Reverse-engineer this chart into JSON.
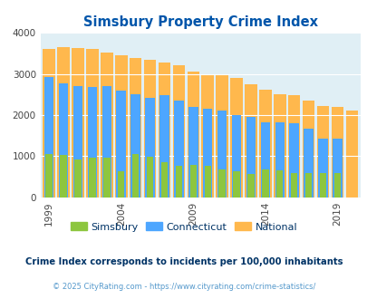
{
  "title": "Simsbury Property Crime Index",
  "years": [
    1999,
    2000,
    2001,
    2002,
    2003,
    2004,
    2005,
    2006,
    2007,
    2008,
    2009,
    2010,
    2011,
    2012,
    2013,
    2014,
    2015,
    2016,
    2017,
    2018,
    2019,
    2020
  ],
  "simsbury": [
    1060,
    1030,
    920,
    970,
    960,
    630,
    1050,
    980,
    860,
    760,
    790,
    760,
    670,
    640,
    560,
    670,
    660,
    600,
    580,
    580,
    580,
    0
  ],
  "connecticut": [
    2920,
    2780,
    2700,
    2690,
    2700,
    2600,
    2510,
    2420,
    2490,
    2360,
    2190,
    2160,
    2120,
    2010,
    1960,
    1830,
    1820,
    1800,
    1680,
    1420,
    1420,
    0
  ],
  "national": [
    3620,
    3660,
    3640,
    3600,
    3530,
    3450,
    3400,
    3340,
    3290,
    3220,
    3060,
    3000,
    2960,
    2910,
    2750,
    2610,
    2500,
    2480,
    2360,
    2230,
    2190,
    2110
  ],
  "simsbury_color": "#8dc63f",
  "connecticut_color": "#4da6ff",
  "national_color": "#ffb84d",
  "background_color": "#e0eff5",
  "ylim": [
    0,
    4000
  ],
  "xticks": [
    1999,
    2004,
    2009,
    2014,
    2019
  ],
  "yticks": [
    0,
    1000,
    2000,
    3000,
    4000
  ],
  "note": "Crime Index corresponds to incidents per 100,000 inhabitants",
  "copyright": "© 2025 CityRating.com - https://www.cityrating.com/crime-statistics/",
  "title_color": "#0055aa",
  "note_color": "#003366",
  "copyright_color": "#5599cc",
  "legend_labels": [
    "Simsbury",
    "Connecticut",
    "National"
  ]
}
